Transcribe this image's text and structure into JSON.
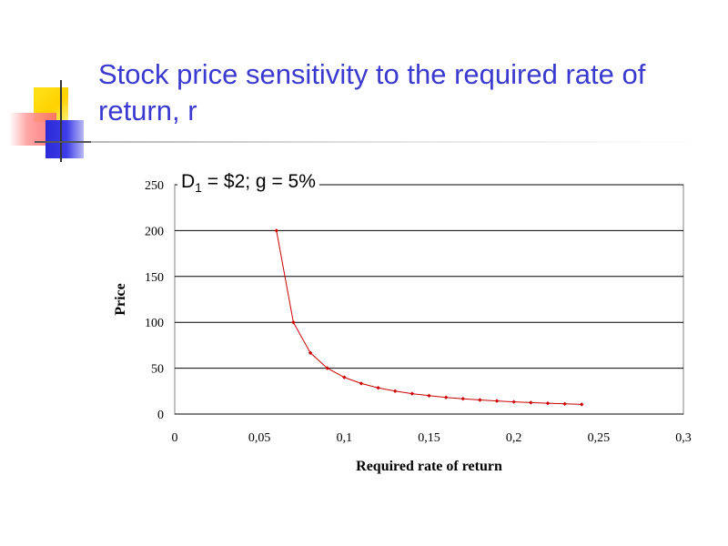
{
  "slide": {
    "title": "Stock price sensitivity to the required rate of return, r"
  },
  "annotation": {
    "d_label": "D",
    "d_subscript": "1",
    "rest": " = $2; g = 5%"
  },
  "colors": {
    "title": "#3a3ad0",
    "series": "#cc0000",
    "grid": "#000000"
  },
  "chart_data": {
    "type": "line",
    "title": "",
    "xlabel": "Required rate of return",
    "ylabel": "Price",
    "xlim": [
      0,
      0.3
    ],
    "ylim": [
      0,
      250
    ],
    "xticks": [
      0,
      0.05,
      0.1,
      0.15,
      0.2,
      0.25,
      0.3
    ],
    "xtick_labels": [
      "0",
      "0,05",
      "0,1",
      "0,15",
      "0,2",
      "0,25",
      "0,3"
    ],
    "yticks": [
      0,
      50,
      100,
      150,
      200,
      250
    ],
    "ytick_labels": [
      "0",
      "50",
      "100",
      "150",
      "200",
      "250"
    ],
    "grid": "horizontal",
    "legend": "none",
    "series": [
      {
        "marker": "diamond",
        "x": [
          0.06,
          0.07,
          0.08,
          0.09,
          0.1,
          0.11,
          0.12,
          0.13,
          0.14,
          0.15,
          0.16,
          0.17,
          0.18,
          0.19,
          0.2,
          0.21,
          0.22,
          0.23,
          0.24
        ],
        "y": [
          200,
          100,
          66.67,
          50,
          40,
          33.33,
          28.57,
          25,
          22.22,
          20,
          18.18,
          16.67,
          15.38,
          14.29,
          13.33,
          12.5,
          11.76,
          11.11,
          10.53
        ]
      }
    ]
  }
}
